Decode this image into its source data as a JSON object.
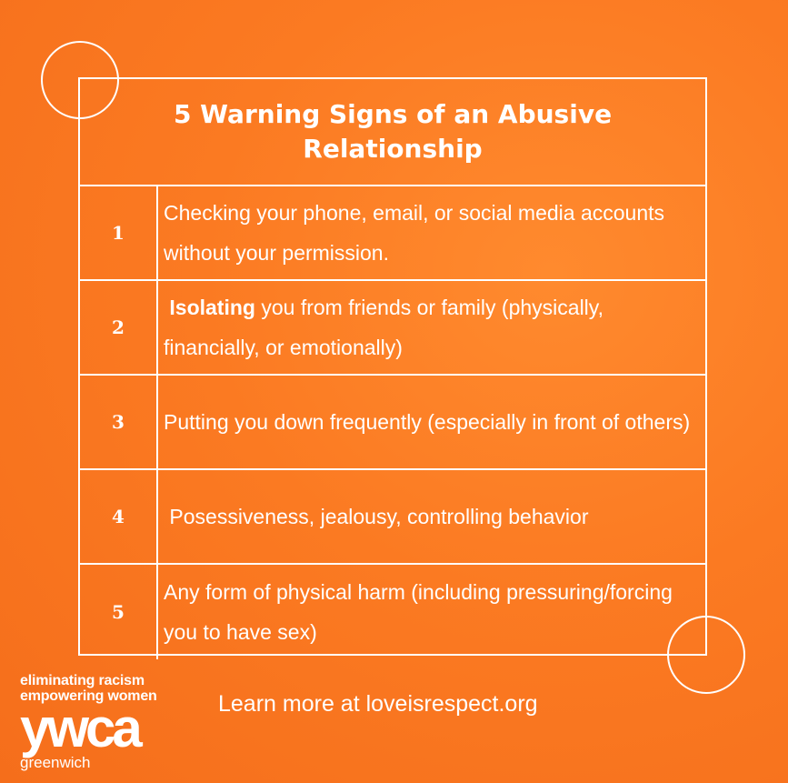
{
  "title": "5 Warning Signs of an Abusive Relationship",
  "signs": [
    {
      "number": "1",
      "bold": "",
      "text": "Checking your phone, email, or social media accounts without your permission."
    },
    {
      "number": "2",
      "bold": " Isolating",
      "text": " you from friends or family (physically, financially, or emotionally)"
    },
    {
      "number": "3",
      "bold": "",
      "text": "Putting you down frequently (especially in front of others)"
    },
    {
      "number": "4",
      "bold": "",
      "text": " Posessiveness, jealousy, controlling behavior"
    },
    {
      "number": "5",
      "bold": "",
      "text": "Any form of physical harm (including pressuring/forcing you to have sex)"
    }
  ],
  "footer": {
    "learn_more": "Learn more at loveisrespect.org"
  },
  "brand": {
    "tagline_1": "eliminating racism",
    "tagline_2": "empowering women",
    "logo": "ywca",
    "city": "greenwich"
  },
  "colors": {
    "background": "#fb7a22",
    "foreground": "#ffffff"
  }
}
